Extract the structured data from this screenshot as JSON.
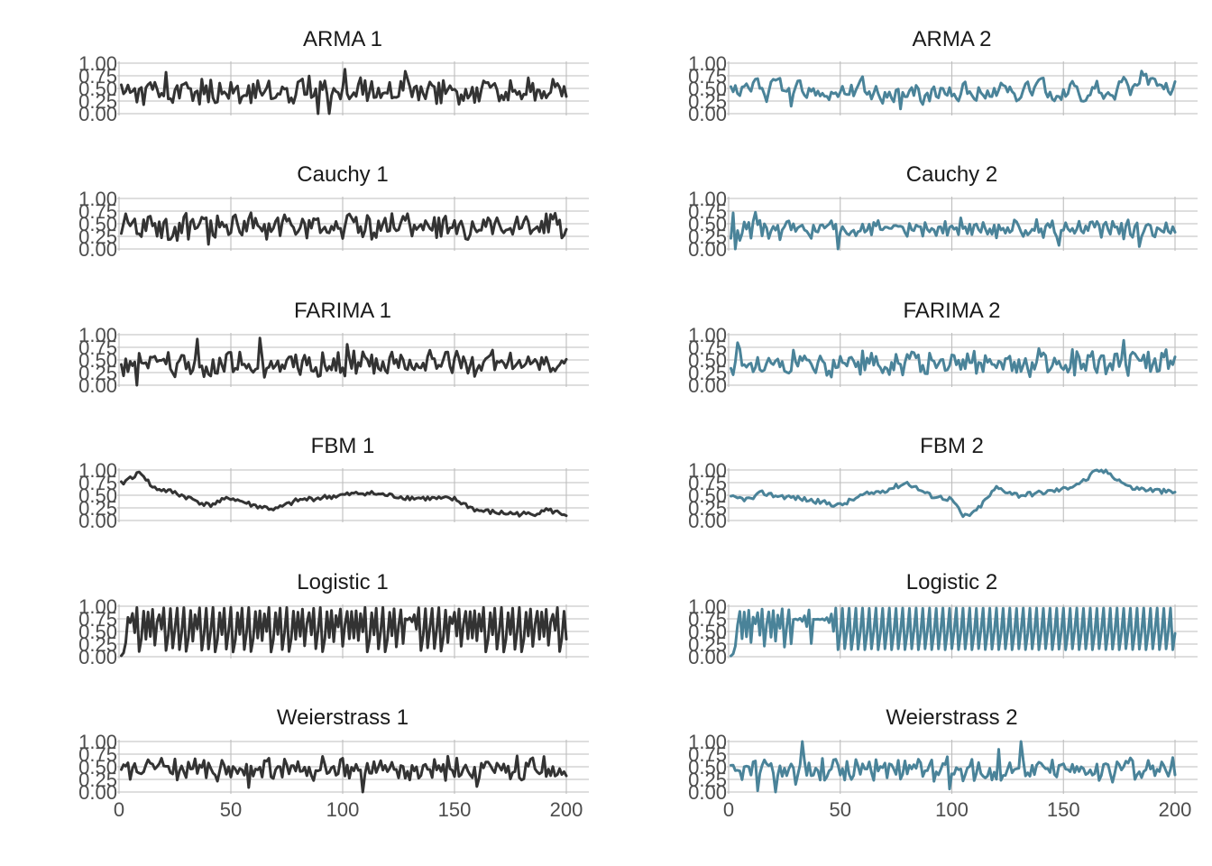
{
  "chart_data": [
    {
      "type": "line",
      "title": "ARMA 1",
      "color": "#333333",
      "x_range": [
        1,
        200
      ],
      "ylim": [
        0,
        1
      ],
      "y_ticks": [
        "0.00",
        "0.25",
        "0.50",
        "0.75",
        "1.00"
      ],
      "x_ticks": [
        0,
        50,
        100,
        150,
        200
      ],
      "show_x_ticks": false,
      "column": 0,
      "row": 0,
      "seed": 11,
      "kind": "noise",
      "level": 0.45,
      "amp": 0.2
    },
    {
      "type": "line",
      "title": "ARMA 2",
      "color": "#4a8399",
      "x_range": [
        1,
        200
      ],
      "ylim": [
        0,
        1
      ],
      "y_ticks": [
        "0.00",
        "0.25",
        "0.50",
        "0.75",
        "1.00"
      ],
      "x_ticks": [
        0,
        50,
        100,
        150,
        200
      ],
      "show_x_ticks": false,
      "column": 1,
      "row": 0,
      "seed": 12,
      "kind": "ar",
      "level": 0.45,
      "amp": 0.15
    },
    {
      "type": "line",
      "title": "Cauchy 1",
      "color": "#333333",
      "x_range": [
        1,
        200
      ],
      "ylim": [
        0,
        1
      ],
      "y_ticks": [
        "0.00",
        "0.25",
        "0.50",
        "0.75",
        "1.00"
      ],
      "x_ticks": [
        0,
        50,
        100,
        150,
        200
      ],
      "show_x_ticks": false,
      "column": 0,
      "row": 1,
      "seed": 21,
      "kind": "noise",
      "level": 0.45,
      "amp": 0.2
    },
    {
      "type": "line",
      "title": "Cauchy 2",
      "color": "#4a8399",
      "x_range": [
        1,
        200
      ],
      "ylim": [
        0,
        1
      ],
      "y_ticks": [
        "0.00",
        "0.25",
        "0.50",
        "0.75",
        "1.00"
      ],
      "x_ticks": [
        0,
        50,
        100,
        150,
        200
      ],
      "show_x_ticks": false,
      "column": 1,
      "row": 1,
      "seed": 22,
      "kind": "noise",
      "level": 0.4,
      "amp": 0.15
    },
    {
      "type": "line",
      "title": "FARIMA 1",
      "color": "#333333",
      "x_range": [
        1,
        200
      ],
      "ylim": [
        0,
        1
      ],
      "y_ticks": [
        "0.00",
        "0.25",
        "0.50",
        "0.75",
        "1.00"
      ],
      "x_ticks": [
        0,
        50,
        100,
        150,
        200
      ],
      "show_x_ticks": false,
      "column": 0,
      "row": 2,
      "seed": 31,
      "kind": "noise",
      "level": 0.42,
      "amp": 0.2
    },
    {
      "type": "line",
      "title": "FARIMA 2",
      "color": "#4a8399",
      "x_range": [
        1,
        200
      ],
      "ylim": [
        0,
        1
      ],
      "y_ticks": [
        "0.00",
        "0.25",
        "0.50",
        "0.75",
        "1.00"
      ],
      "x_ticks": [
        0,
        50,
        100,
        150,
        200
      ],
      "show_x_ticks": false,
      "column": 1,
      "row": 2,
      "seed": 32,
      "kind": "noise",
      "level": 0.45,
      "amp": 0.2
    },
    {
      "type": "line",
      "title": "FBM 1",
      "color": "#333333",
      "x_range": [
        1,
        200
      ],
      "ylim": [
        0,
        1
      ],
      "y_ticks": [
        "0.00",
        "0.25",
        "0.50",
        "0.75",
        "1.00"
      ],
      "x_ticks": [
        0,
        50,
        100,
        150,
        200
      ],
      "show_x_ticks": false,
      "column": 0,
      "row": 3,
      "seed": 41,
      "kind": "trend",
      "points": [
        [
          1,
          0.72
        ],
        [
          5,
          0.85
        ],
        [
          10,
          0.95
        ],
        [
          15,
          0.65
        ],
        [
          25,
          0.55
        ],
        [
          40,
          0.3
        ],
        [
          50,
          0.45
        ],
        [
          60,
          0.3
        ],
        [
          70,
          0.22
        ],
        [
          80,
          0.4
        ],
        [
          100,
          0.5
        ],
        [
          110,
          0.55
        ],
        [
          120,
          0.5
        ],
        [
          130,
          0.45
        ],
        [
          150,
          0.42
        ],
        [
          160,
          0.2
        ],
        [
          170,
          0.15
        ],
        [
          185,
          0.12
        ],
        [
          190,
          0.22
        ],
        [
          200,
          0.12
        ]
      ],
      "noise": 0.05
    },
    {
      "type": "line",
      "title": "FBM 2",
      "color": "#4a8399",
      "x_range": [
        1,
        200
      ],
      "ylim": [
        0,
        1
      ],
      "y_ticks": [
        "0.00",
        "0.25",
        "0.50",
        "0.75",
        "1.00"
      ],
      "x_ticks": [
        0,
        50,
        100,
        150,
        200
      ],
      "show_x_ticks": false,
      "column": 1,
      "row": 3,
      "seed": 42,
      "kind": "trend",
      "points": [
        [
          1,
          0.45
        ],
        [
          10,
          0.42
        ],
        [
          15,
          0.55
        ],
        [
          20,
          0.5
        ],
        [
          30,
          0.45
        ],
        [
          50,
          0.3
        ],
        [
          60,
          0.5
        ],
        [
          70,
          0.6
        ],
        [
          80,
          0.75
        ],
        [
          90,
          0.5
        ],
        [
          100,
          0.42
        ],
        [
          105,
          0.08
        ],
        [
          110,
          0.15
        ],
        [
          120,
          0.65
        ],
        [
          130,
          0.5
        ],
        [
          140,
          0.55
        ],
        [
          150,
          0.62
        ],
        [
          160,
          0.8
        ],
        [
          165,
          1.0
        ],
        [
          170,
          0.95
        ],
        [
          180,
          0.65
        ],
        [
          190,
          0.6
        ],
        [
          200,
          0.55
        ]
      ],
      "noise": 0.05
    },
    {
      "type": "line",
      "title": "Logistic 1",
      "color": "#333333",
      "x_range": [
        1,
        200
      ],
      "ylim": [
        0,
        1
      ],
      "y_ticks": [
        "0.00",
        "0.25",
        "0.50",
        "0.75",
        "1.00"
      ],
      "x_ticks": [
        0,
        50,
        100,
        150,
        200
      ],
      "show_x_ticks": false,
      "column": 0,
      "row": 4,
      "seed": 51,
      "kind": "logistic",
      "r": 3.9,
      "x0": 0.02
    },
    {
      "type": "line",
      "title": "Logistic 2",
      "color": "#4a8399",
      "x_range": [
        1,
        200
      ],
      "ylim": [
        0,
        1
      ],
      "y_ticks": [
        "0.00",
        "0.25",
        "0.50",
        "0.75",
        "1.00"
      ],
      "x_ticks": [
        0,
        50,
        100,
        150,
        200
      ],
      "show_x_ticks": false,
      "column": 1,
      "row": 4,
      "seed": 52,
      "kind": "logistic",
      "r": 3.85,
      "x0": 0.015
    },
    {
      "type": "line",
      "title": "Weierstrass 1",
      "color": "#333333",
      "x_range": [
        1,
        200
      ],
      "ylim": [
        0,
        1
      ],
      "y_ticks": [
        "0.00",
        "0.25",
        "0.50",
        "0.75",
        "1.00"
      ],
      "x_ticks": [
        0,
        50,
        100,
        150,
        200
      ],
      "show_x_ticks": true,
      "column": 0,
      "row": 5,
      "seed": 61,
      "kind": "noise",
      "level": 0.45,
      "amp": 0.18
    },
    {
      "type": "line",
      "title": "Weierstrass 2",
      "color": "#4a8399",
      "x_range": [
        1,
        200
      ],
      "ylim": [
        0,
        1
      ],
      "y_ticks": [
        "0.00",
        "0.25",
        "0.50",
        "0.75",
        "1.00"
      ],
      "x_ticks": [
        0,
        50,
        100,
        150,
        200
      ],
      "show_x_ticks": true,
      "column": 1,
      "row": 5,
      "seed": 62,
      "kind": "noise",
      "level": 0.45,
      "amp": 0.18
    }
  ]
}
